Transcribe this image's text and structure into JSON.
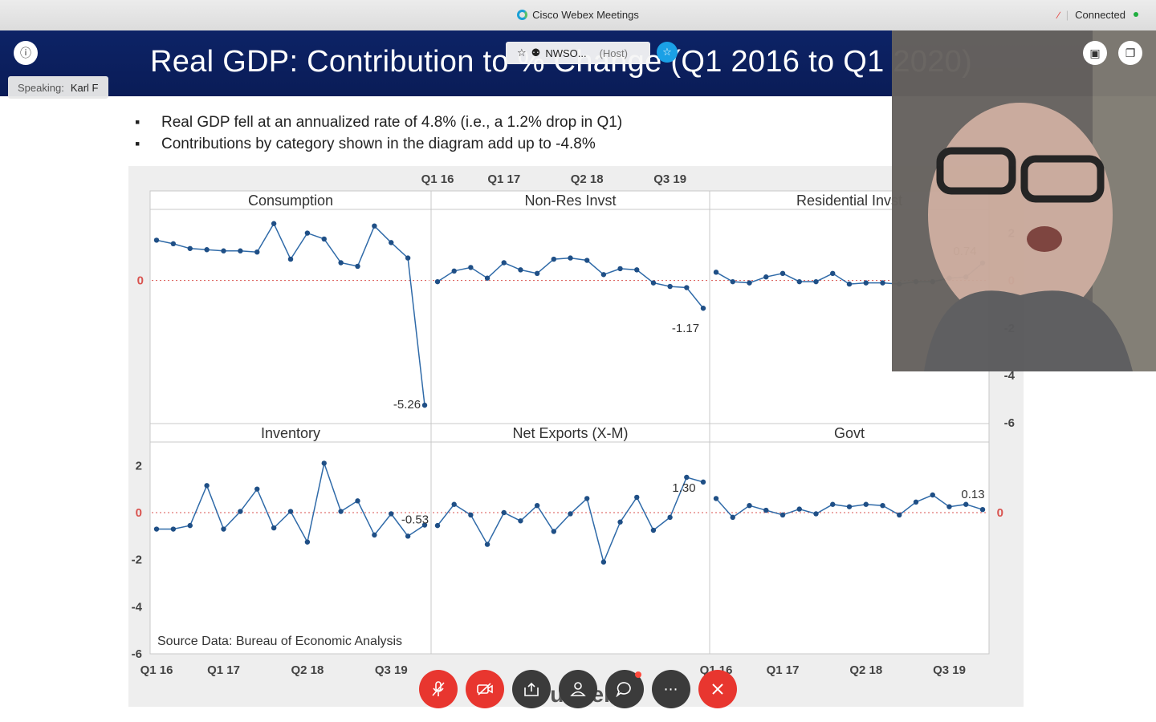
{
  "window": {
    "app_title": "Cisco Webex Meetings",
    "connection_status": "Connected",
    "status_color": "#1fae3f"
  },
  "meeting": {
    "speaking_label": "Speaking:",
    "speaker_name": "Karl F",
    "host_name": "NWSO...",
    "host_role": "(Host)",
    "presenter_overlay_text": "Dunder"
  },
  "slide": {
    "title": "Real GDP:  Contribution to % Change (Q1 2016 to Q1 2020)",
    "bullets": [
      "Real GDP fell at an annualized rate of 4.8% (i.e., a 1.2% drop in Q1)",
      "Contributions by category shown in the diagram add up to -4.8%"
    ],
    "source": "Source Data: Bureau of Economic Analysis"
  },
  "chart_data": {
    "type": "line",
    "layout": "panel grid 2 rows x 3 columns, shared axes",
    "x_ticks": [
      "Q1 16",
      "Q1 17",
      "Q2 18",
      "Q3 19"
    ],
    "y_ticks": [
      2,
      0,
      -2,
      -4,
      -6
    ],
    "ylim": [
      -6,
      3
    ],
    "reference_line": 0,
    "reference_line_color": "#d9534f",
    "line_color": "#2f6aa8",
    "grid": true,
    "panels": [
      {
        "title": "Consumption",
        "values": [
          1.7,
          1.55,
          1.35,
          1.3,
          1.25,
          1.25,
          1.2,
          2.4,
          0.9,
          2.0,
          1.75,
          0.75,
          0.6,
          2.3,
          1.6,
          0.95,
          -5.26
        ],
        "annotations": [
          {
            "point": 16,
            "label": "-5.26"
          }
        ]
      },
      {
        "title": "Non-Res Invst",
        "values": [
          -0.05,
          0.4,
          0.55,
          0.1,
          0.75,
          0.45,
          0.3,
          0.9,
          0.95,
          0.85,
          0.25,
          0.5,
          0.45,
          -0.1,
          -0.25,
          -0.3,
          -1.17
        ],
        "annotations": [
          {
            "point": 16,
            "label": "-1.17"
          }
        ]
      },
      {
        "title": "Residential  Invst",
        "values": [
          0.35,
          -0.05,
          -0.1,
          0.15,
          0.3,
          -0.05,
          -0.05,
          0.3,
          -0.15,
          -0.1,
          -0.1,
          -0.15,
          -0.05,
          -0.05,
          0.1,
          0.15,
          0.74
        ],
        "annotations": [
          {
            "point": 16,
            "label": "0.74"
          }
        ]
      },
      {
        "title": "Inventory",
        "values": [
          -0.7,
          -0.7,
          -0.55,
          1.15,
          -0.7,
          0.05,
          1.0,
          -0.65,
          0.05,
          -1.25,
          2.1,
          0.05,
          0.5,
          -0.95,
          -0.05,
          -1.0,
          -0.53
        ],
        "annotations": [
          {
            "point": 16,
            "label": "-0.53"
          }
        ]
      },
      {
        "title": "Net Exports (X-M)",
        "values": [
          -0.55,
          0.35,
          -0.1,
          -1.35,
          0.0,
          -0.35,
          0.3,
          -0.8,
          -0.05,
          0.6,
          -2.1,
          -0.4,
          0.65,
          -0.75,
          -0.2,
          1.5,
          1.3
        ],
        "annotations": [
          {
            "point": 16,
            "label": "1.30"
          }
        ]
      },
      {
        "title": "Govt",
        "values": [
          0.6,
          -0.2,
          0.3,
          0.1,
          -0.1,
          0.15,
          -0.05,
          0.35,
          0.25,
          0.35,
          0.3,
          -0.1,
          0.45,
          0.75,
          0.25,
          0.35,
          0.13
        ],
        "annotations": [
          {
            "point": 16,
            "label": "0.13"
          }
        ]
      }
    ]
  },
  "controls": {
    "mute": "microphone-off",
    "video": "camera-off",
    "share": "share-content",
    "participants": "participants",
    "chat": "chat",
    "more": "more-options",
    "leave": "end-meeting"
  }
}
